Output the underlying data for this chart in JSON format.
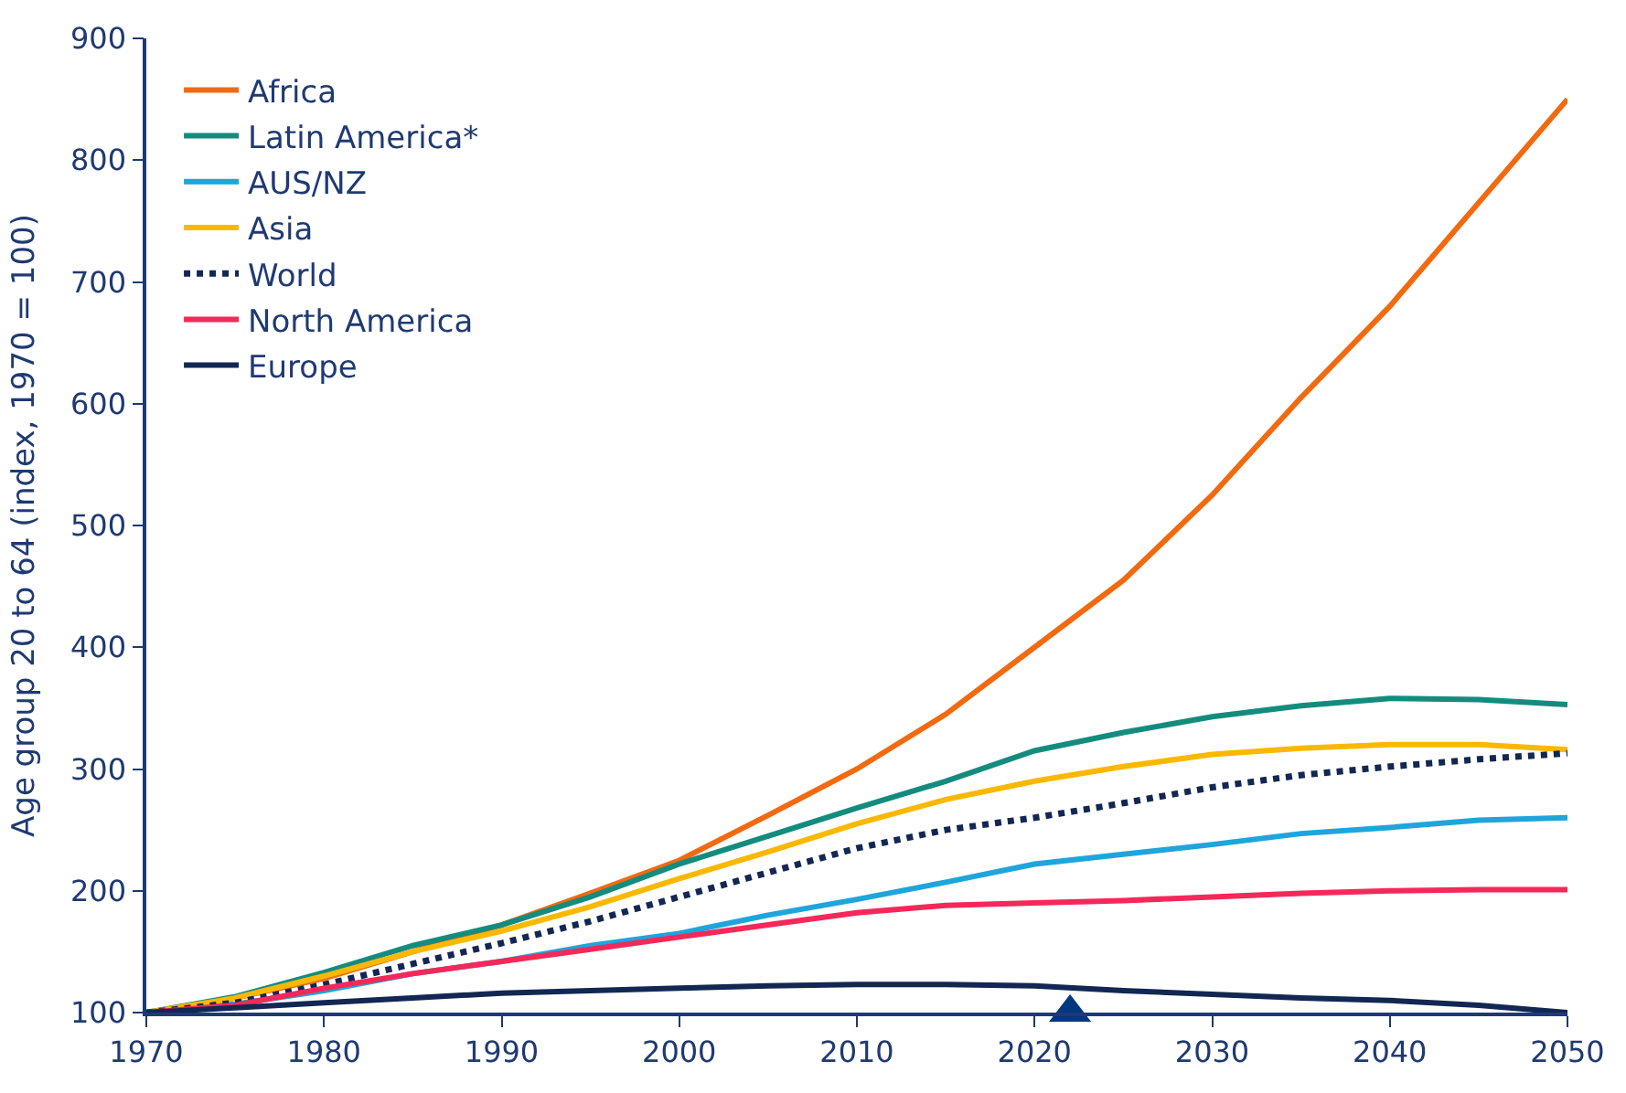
{
  "chart_data": {
    "type": "line",
    "ylabel": "Age group 20 to 64 (index, 1970 = 100)",
    "x": [
      1970,
      1975,
      1980,
      1985,
      1990,
      1995,
      2000,
      2005,
      2010,
      2015,
      2020,
      2025,
      2030,
      2035,
      2040,
      2045,
      2050
    ],
    "series": [
      {
        "name": "Africa",
        "color": "#f26a10",
        "values": [
          100,
          112,
          128,
          150,
          172,
          198,
          225,
          262,
          300,
          345,
          400,
          455,
          525,
          605,
          680,
          765,
          850
        ]
      },
      {
        "name": "Latin America*",
        "color": "#138c7e",
        "values": [
          100,
          113,
          133,
          155,
          172,
          195,
          222,
          245,
          268,
          290,
          315,
          330,
          343,
          352,
          358,
          357,
          353
        ]
      },
      {
        "name": "AUS/NZ",
        "color": "#1ea5dc",
        "values": [
          100,
          107,
          118,
          132,
          142,
          155,
          165,
          180,
          193,
          207,
          222,
          230,
          238,
          247,
          252,
          258,
          260
        ]
      },
      {
        "name": "Asia",
        "color": "#fbb800",
        "values": [
          100,
          112,
          130,
          150,
          167,
          187,
          210,
          232,
          255,
          275,
          290,
          302,
          312,
          317,
          320,
          320,
          316
        ]
      },
      {
        "name": "World",
        "color": "#122752",
        "line_style": "dotted",
        "values": [
          100,
          108,
          123,
          140,
          157,
          175,
          195,
          215,
          235,
          250,
          260,
          272,
          285,
          295,
          302,
          308,
          313
        ]
      },
      {
        "name": "North America",
        "color": "#f5285a",
        "values": [
          100,
          106,
          120,
          132,
          142,
          152,
          162,
          172,
          182,
          188,
          190,
          192,
          195,
          198,
          200,
          201,
          201
        ]
      },
      {
        "name": "Europe",
        "color": "#122752",
        "values": [
          100,
          104,
          108,
          112,
          116,
          118,
          120,
          122,
          123,
          123,
          122,
          118,
          115,
          112,
          110,
          106,
          100
        ]
      },
      {
        "type": "scatter",
        "marker": "triangle",
        "color": "#003781",
        "x": [
          2022
        ],
        "values": [
          100
        ]
      }
    ],
    "xlim": [
      1970,
      2050
    ],
    "xticks": [
      1970,
      1980,
      1990,
      2000,
      2010,
      2020,
      2030,
      2040,
      2050
    ],
    "ylim": [
      100,
      900
    ],
    "yticks": [
      100,
      200,
      300,
      400,
      500,
      600,
      700,
      800,
      900
    ],
    "legend": "top left",
    "line_style": "solid",
    "marker": "none"
  }
}
